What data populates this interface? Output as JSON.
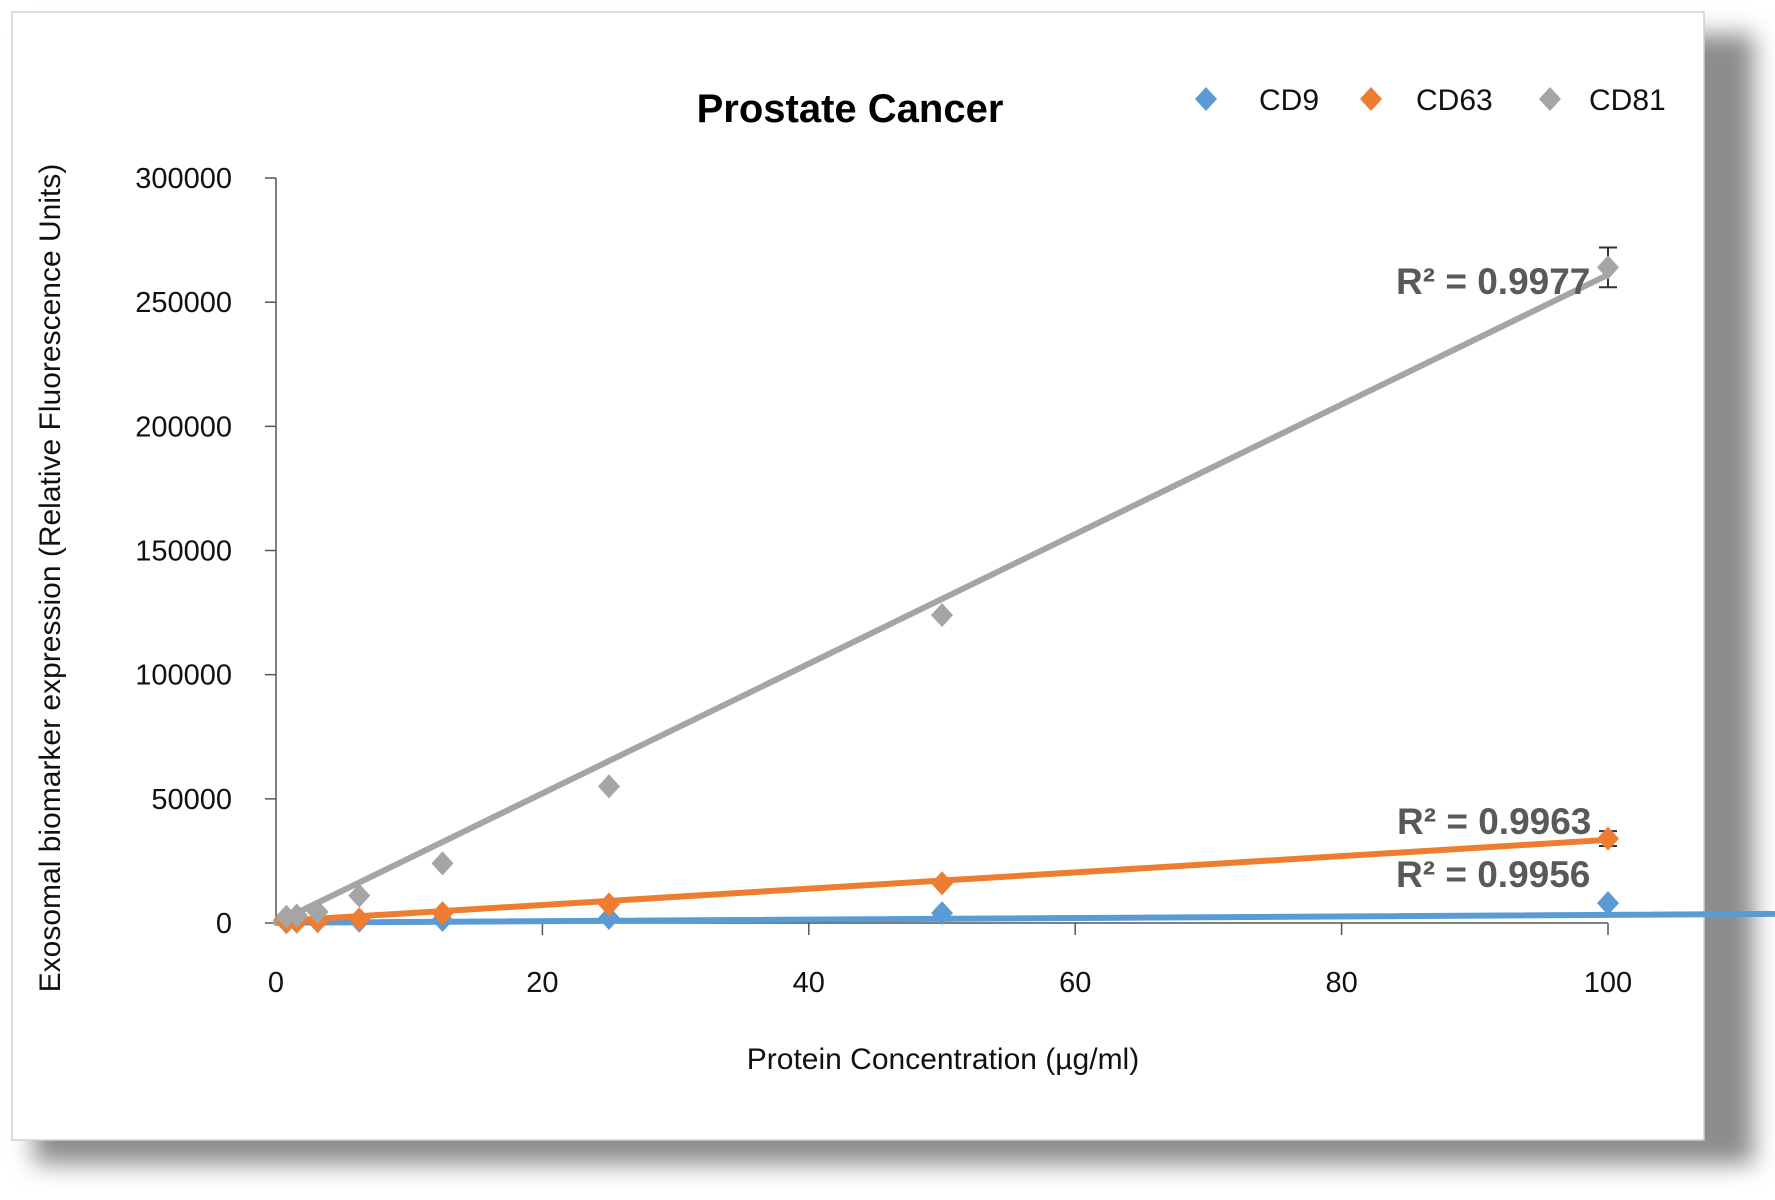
{
  "chart_data": {
    "type": "scatter",
    "title": "Prostate Cancer",
    "xlabel": "Protein Concentration (µg/ml)",
    "ylabel": "Exosomal biomarker expression (Relative Fluorescence Units)",
    "xlim": [
      0,
      100
    ],
    "ylim": [
      0,
      300000
    ],
    "x_ticks": [
      "0",
      "20",
      "40",
      "60",
      "80",
      "100"
    ],
    "y_ticks": [
      "0",
      "50000",
      "100000",
      "150000",
      "200000",
      "250000",
      "300000"
    ],
    "grid": false,
    "legend_position": "top-right",
    "trendline": "linear",
    "series": [
      {
        "name": "CD9",
        "color": "#5b9bd5",
        "x": [
          0.78,
          1.56,
          3.125,
          6.25,
          12.5,
          25,
          50,
          100
        ],
        "y": [
          300,
          500,
          700,
          900,
          1200,
          2000,
          4000,
          8000
        ],
        "r2_label": "R² = 0.9956",
        "trend": [
          0,
          100,
          250,
          8000
        ]
      },
      {
        "name": "CD63",
        "color": "#ed7d31",
        "x": [
          0.78,
          1.56,
          3.125,
          6.25,
          12.5,
          25,
          50,
          100
        ],
        "y": [
          400,
          600,
          800,
          1500,
          4000,
          7500,
          16000,
          34000
        ],
        "r2_label": "R² = 0.9963",
        "trend": [
          0,
          700,
          100,
          33500
        ],
        "error_at_last": 3000
      },
      {
        "name": "CD81",
        "color": "#a5a5a5",
        "x": [
          0.78,
          1.56,
          3.125,
          6.25,
          12.5,
          25,
          50,
          100
        ],
        "y": [
          2500,
          3000,
          4500,
          11000,
          24000,
          55000,
          124000,
          264000
        ],
        "r2_label": "R² = 0.9977",
        "trend": [
          0,
          0,
          100,
          261000
        ],
        "error_at_last": 8000
      }
    ]
  }
}
